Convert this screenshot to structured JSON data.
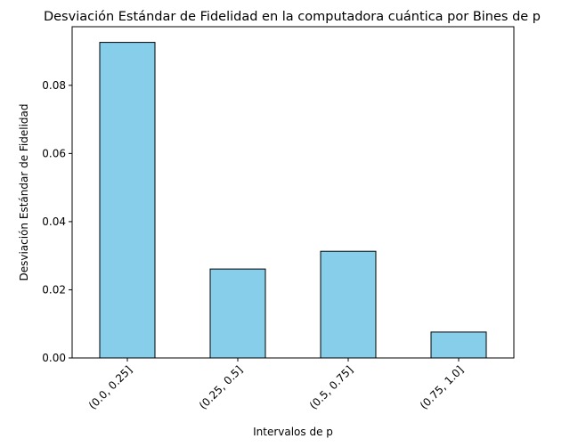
{
  "chart_data": {
    "type": "bar",
    "title": "Desviación Estándar de Fidelidad en la computadora cuántica por Bines de p",
    "xlabel": "Intervalos de p",
    "ylabel": "Desviación Estándar de Fidelidad",
    "categories": [
      "(0.0, 0.25]",
      "(0.25, 0.5]",
      "(0.5, 0.75]",
      "(0.75, 1.0]"
    ],
    "values": [
      0.0926,
      0.0261,
      0.0313,
      0.0076
    ],
    "ylim": [
      0,
      0.0972
    ],
    "yticks": [
      0.0,
      0.02,
      0.04,
      0.06,
      0.08
    ],
    "ytick_labels": [
      "0.00",
      "0.02",
      "0.04",
      "0.06",
      "0.08"
    ],
    "bar_color": "#87CEEB",
    "edge_color": "#000000",
    "grid": false,
    "legend": "none"
  }
}
